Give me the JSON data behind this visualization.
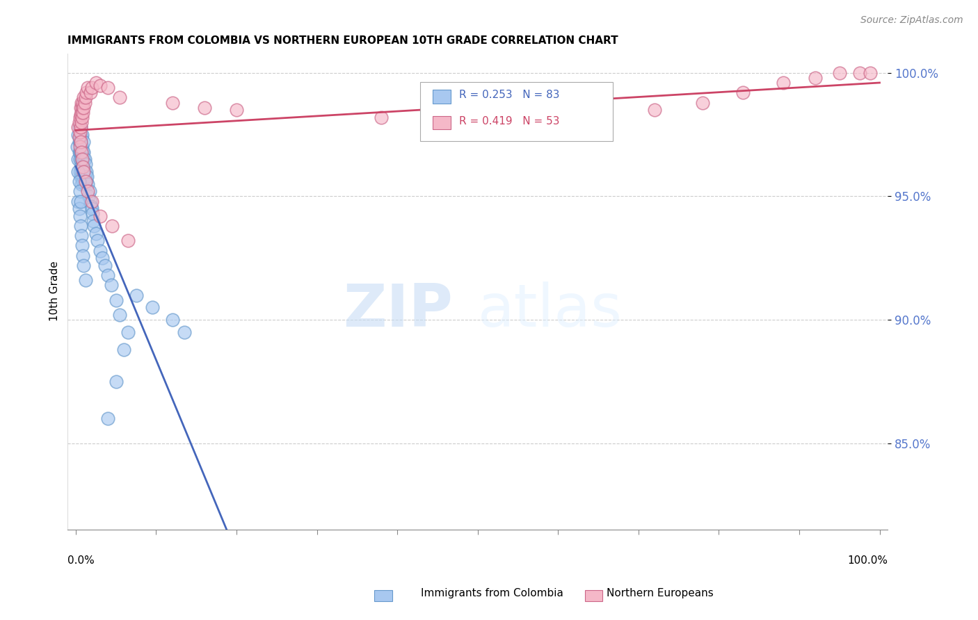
{
  "title": "IMMIGRANTS FROM COLOMBIA VS NORTHERN EUROPEAN 10TH GRADE CORRELATION CHART",
  "source": "Source: ZipAtlas.com",
  "ylabel": "10th Grade",
  "ylim": [
    0.815,
    1.008
  ],
  "xlim": [
    -0.01,
    1.01
  ],
  "yticks": [
    0.85,
    0.9,
    0.95,
    1.0
  ],
  "ytick_labels": [
    "85.0%",
    "90.0%",
    "95.0%",
    "100.0%"
  ],
  "colombia_color": "#a8c8f0",
  "colombia_edge_color": "#6699cc",
  "northern_color": "#f5b8c8",
  "northern_edge_color": "#cc6688",
  "colombia_line_color": "#4466bb",
  "northern_line_color": "#cc4466",
  "background_color": "#ffffff",
  "grid_color": "#cccccc",
  "watermark_zip": "ZIP",
  "watermark_atlas": "atlas",
  "title_fontsize": 11,
  "source_fontsize": 10,
  "colombia_x": [
    0.002,
    0.003,
    0.003,
    0.004,
    0.004,
    0.004,
    0.005,
    0.005,
    0.005,
    0.005,
    0.005,
    0.006,
    0.006,
    0.006,
    0.006,
    0.006,
    0.007,
    0.007,
    0.007,
    0.007,
    0.007,
    0.007,
    0.008,
    0.008,
    0.008,
    0.008,
    0.008,
    0.009,
    0.009,
    0.009,
    0.009,
    0.01,
    0.01,
    0.01,
    0.01,
    0.01,
    0.011,
    0.011,
    0.011,
    0.012,
    0.012,
    0.013,
    0.013,
    0.014,
    0.015,
    0.016,
    0.017,
    0.018,
    0.019,
    0.02,
    0.021,
    0.022,
    0.023,
    0.025,
    0.027,
    0.03,
    0.033,
    0.036,
    0.04,
    0.044,
    0.05,
    0.055,
    0.065,
    0.003,
    0.004,
    0.005,
    0.006,
    0.007,
    0.008,
    0.009,
    0.01,
    0.012,
    0.003,
    0.004,
    0.005,
    0.006,
    0.12,
    0.135,
    0.095,
    0.075,
    0.06,
    0.05,
    0.04
  ],
  "colombia_y": [
    0.97,
    0.965,
    0.975,
    0.968,
    0.972,
    0.978,
    0.96,
    0.965,
    0.968,
    0.972,
    0.975,
    0.958,
    0.962,
    0.968,
    0.972,
    0.978,
    0.955,
    0.96,
    0.965,
    0.968,
    0.97,
    0.974,
    0.958,
    0.962,
    0.965,
    0.97,
    0.975,
    0.956,
    0.96,
    0.964,
    0.968,
    0.958,
    0.962,
    0.965,
    0.968,
    0.972,
    0.955,
    0.96,
    0.965,
    0.958,
    0.963,
    0.956,
    0.96,
    0.958,
    0.955,
    0.95,
    0.952,
    0.948,
    0.946,
    0.945,
    0.943,
    0.94,
    0.938,
    0.935,
    0.932,
    0.928,
    0.925,
    0.922,
    0.918,
    0.914,
    0.908,
    0.902,
    0.895,
    0.948,
    0.945,
    0.942,
    0.938,
    0.934,
    0.93,
    0.926,
    0.922,
    0.916,
    0.96,
    0.956,
    0.952,
    0.948,
    0.9,
    0.895,
    0.905,
    0.91,
    0.888,
    0.875,
    0.86
  ],
  "northern_x": [
    0.003,
    0.004,
    0.004,
    0.005,
    0.005,
    0.006,
    0.006,
    0.006,
    0.007,
    0.007,
    0.007,
    0.008,
    0.008,
    0.009,
    0.009,
    0.01,
    0.01,
    0.011,
    0.012,
    0.013,
    0.015,
    0.018,
    0.02,
    0.025,
    0.03,
    0.04,
    0.055,
    0.12,
    0.16,
    0.2,
    0.38,
    0.56,
    0.62,
    0.72,
    0.78,
    0.83,
    0.88,
    0.92,
    0.95,
    0.975,
    0.988,
    0.005,
    0.006,
    0.007,
    0.008,
    0.009,
    0.01,
    0.012,
    0.015,
    0.02,
    0.03,
    0.045,
    0.065
  ],
  "northern_y": [
    0.978,
    0.974,
    0.98,
    0.976,
    0.982,
    0.978,
    0.983,
    0.986,
    0.98,
    0.984,
    0.988,
    0.982,
    0.986,
    0.984,
    0.988,
    0.986,
    0.99,
    0.988,
    0.99,
    0.992,
    0.994,
    0.992,
    0.994,
    0.996,
    0.995,
    0.994,
    0.99,
    0.988,
    0.986,
    0.985,
    0.982,
    0.98,
    0.98,
    0.985,
    0.988,
    0.992,
    0.996,
    0.998,
    1.0,
    1.0,
    1.0,
    0.97,
    0.972,
    0.968,
    0.965,
    0.962,
    0.96,
    0.956,
    0.952,
    0.948,
    0.942,
    0.938,
    0.932
  ]
}
